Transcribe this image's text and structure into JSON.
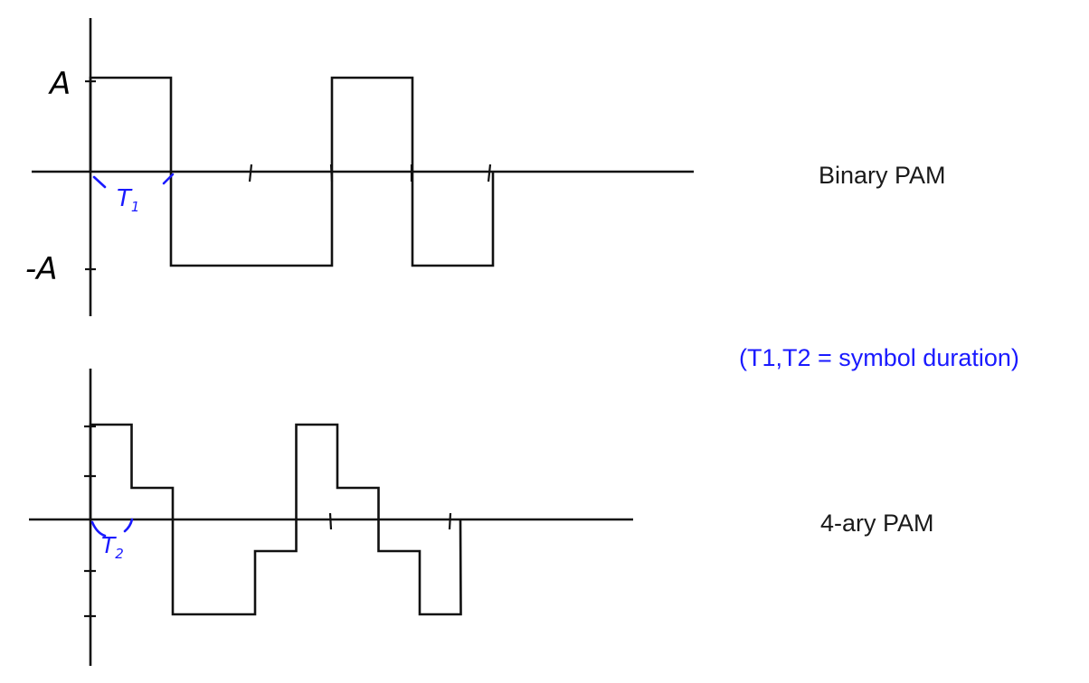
{
  "binary": {
    "title": "Binary PAM",
    "level_labels": [
      "A",
      "-A"
    ],
    "duration_label": "T",
    "duration_sub": "1",
    "levels": [
      1,
      -1,
      -1,
      1,
      -1
    ]
  },
  "quaternary": {
    "title": "4-ary PAM",
    "duration_label": "T",
    "duration_sub": "2",
    "levels": [
      3,
      1,
      -3,
      -3,
      -1,
      3,
      1,
      -1,
      -3
    ]
  },
  "note": "(T1,T2 = symbol duration)",
  "colors": {
    "ink": "#111111",
    "annotation": "#1a1aff"
  }
}
